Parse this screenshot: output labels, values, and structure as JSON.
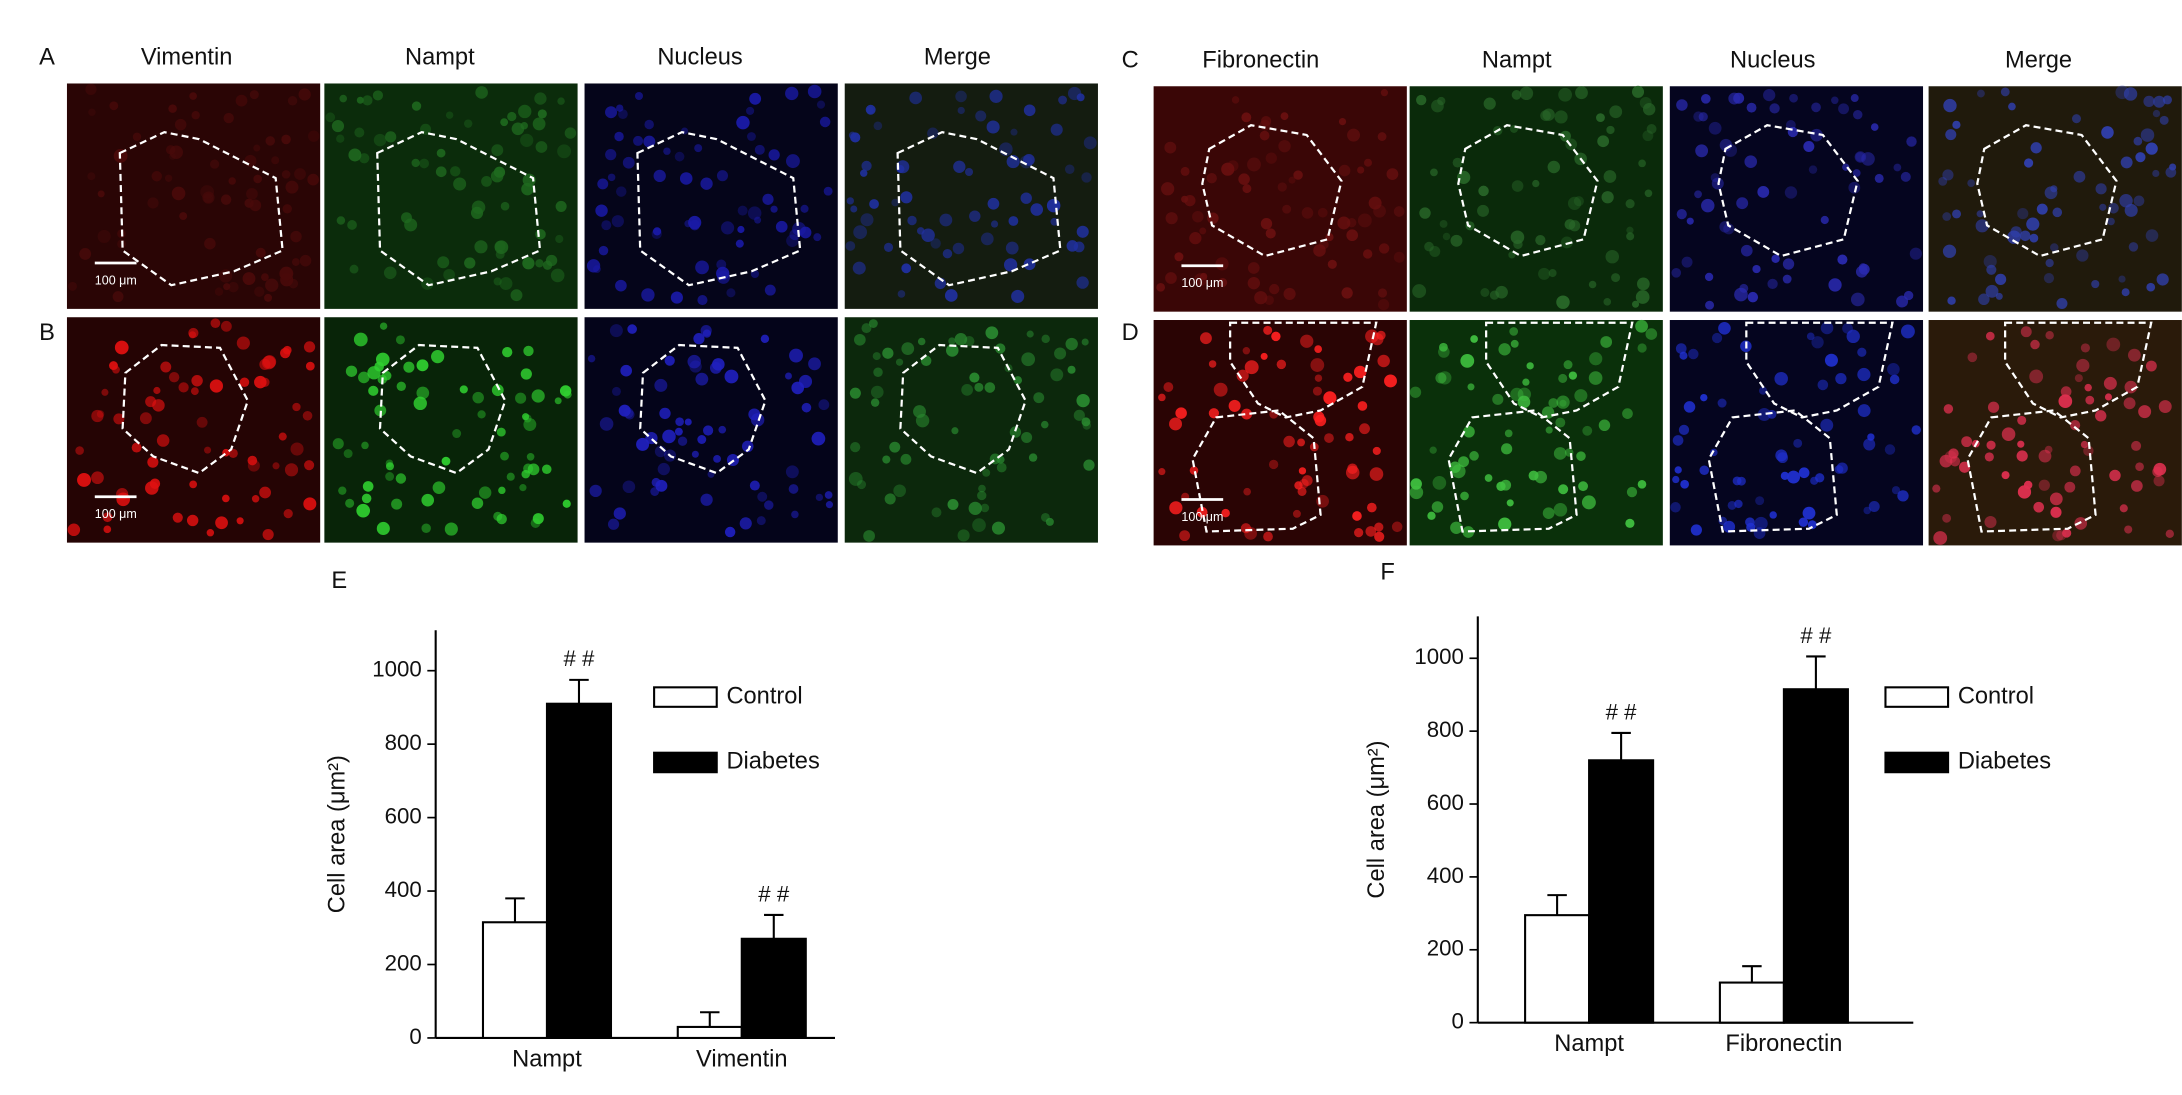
{
  "figure": {
    "left": {
      "headers": [
        "Vimentin",
        "Nampt",
        "Nucleus",
        "Merge"
      ],
      "rows": [
        {
          "label": "A",
          "scale_bar": "100 μm"
        },
        {
          "label": "B",
          "scale_bar": "100 μm"
        }
      ]
    },
    "right": {
      "headers": [
        "Fibronectin",
        "Nampt",
        "Nucleus",
        "Merge"
      ],
      "rows": [
        {
          "label": "C",
          "scale_bar": "100 μm"
        },
        {
          "label": "D",
          "scale_bar": "100 μm"
        }
      ]
    }
  },
  "chart_data": [
    {
      "type": "bar",
      "label": "E",
      "y_label": "Cell area (μm²)",
      "categories": [
        "Nampt",
        "Vimentin"
      ],
      "series": [
        {
          "name": "Control",
          "color": "#ffffff",
          "values": [
            315,
            30
          ],
          "errors": [
            65,
            40
          ]
        },
        {
          "name": "Diabetes",
          "color": "#000000",
          "values": [
            910,
            270
          ],
          "errors": [
            65,
            65
          ],
          "annotations": [
            "# #",
            "# #"
          ]
        }
      ],
      "ylim": [
        0,
        1110
      ],
      "yticks": [
        0,
        200,
        400,
        600,
        800,
        1000
      ]
    },
    {
      "type": "bar",
      "label": "F",
      "y_label": "Cell area (μm²)",
      "categories": [
        "Nampt",
        "Fibronectin"
      ],
      "series": [
        {
          "name": "Control",
          "color": "#ffffff",
          "values": [
            295,
            110
          ],
          "errors": [
            55,
            45
          ]
        },
        {
          "name": "Diabetes",
          "color": "#000000",
          "values": [
            720,
            915
          ],
          "errors": [
            75,
            90
          ],
          "annotations": [
            "# #",
            "# #"
          ]
        }
      ],
      "ylim": [
        0,
        1115
      ],
      "yticks": [
        0,
        200,
        400,
        600,
        800,
        1000
      ]
    }
  ]
}
